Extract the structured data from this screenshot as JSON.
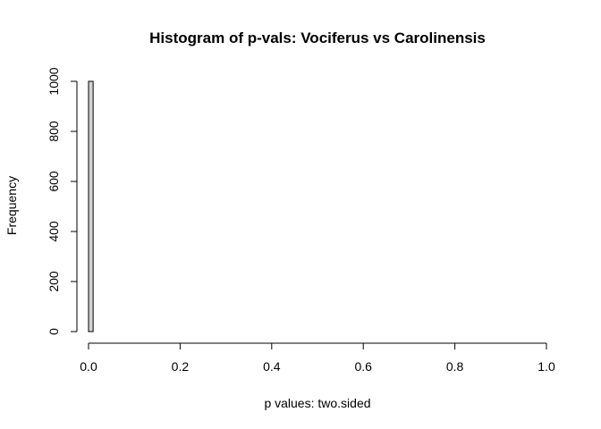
{
  "chart_data": {
    "type": "bar",
    "title": "Histogram of p-vals: Vociferus vs Carolinensis",
    "xlabel": "p values: two.sided",
    "ylabel": "Frequency",
    "xlim": [
      0,
      1
    ],
    "ylim": [
      0,
      1000
    ],
    "x_ticks": [
      "0.0",
      "0.2",
      "0.4",
      "0.6",
      "0.8",
      "1.0"
    ],
    "y_ticks": [
      "0",
      "200",
      "400",
      "600",
      "800",
      "1000"
    ],
    "bin_width": 0.01,
    "bins": [
      {
        "start": 0.0,
        "end": 0.01,
        "value": 1000
      }
    ],
    "bar_fill": "#d3d3d3",
    "bar_stroke": "#000000",
    "grid": false,
    "legend": "none"
  }
}
